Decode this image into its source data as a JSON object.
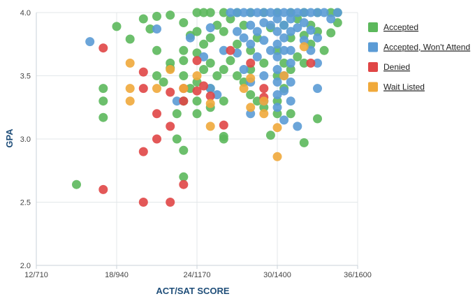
{
  "chart_data": {
    "type": "scatter",
    "xlabel": "ACT/SAT SCORE",
    "ylabel": "GPA",
    "xlim": [
      12,
      36
    ],
    "ylim": [
      2.0,
      4.0
    ],
    "x_ticks": [
      {
        "value": 12,
        "label": "12/710"
      },
      {
        "value": 18,
        "label": "18/940"
      },
      {
        "value": 24,
        "label": "24/1170"
      },
      {
        "value": 30,
        "label": "30/1400"
      },
      {
        "value": 36,
        "label": "36/1600"
      }
    ],
    "y_ticks": [
      {
        "value": 2.0,
        "label": "2.0"
      },
      {
        "value": 2.5,
        "label": "2.5"
      },
      {
        "value": 3.0,
        "label": "3.0"
      },
      {
        "value": 3.5,
        "label": "3.5"
      },
      {
        "value": 4.0,
        "label": "4.0"
      }
    ],
    "grid": true,
    "legend_position": "right",
    "series": [
      {
        "name": "Accepted",
        "color": "#5cb85c",
        "points": [
          [
            15.0,
            2.64
          ],
          [
            17.0,
            3.4
          ],
          [
            17.0,
            3.3
          ],
          [
            17.0,
            3.17
          ],
          [
            18.0,
            3.89
          ],
          [
            19.0,
            3.79
          ],
          [
            20.0,
            3.95
          ],
          [
            20.5,
            3.87
          ],
          [
            21.0,
            3.97
          ],
          [
            21.0,
            3.7
          ],
          [
            21.0,
            3.5
          ],
          [
            21.5,
            3.45
          ],
          [
            22.0,
            3.98
          ],
          [
            22.0,
            3.56
          ],
          [
            22.0,
            3.6
          ],
          [
            22.5,
            3.2
          ],
          [
            22.5,
            3.0
          ],
          [
            23.0,
            3.92
          ],
          [
            23.0,
            3.7
          ],
          [
            23.0,
            3.62
          ],
          [
            23.0,
            3.5
          ],
          [
            23.0,
            3.3
          ],
          [
            23.0,
            2.91
          ],
          [
            23.0,
            2.7
          ],
          [
            23.5,
            3.82
          ],
          [
            23.5,
            3.4
          ],
          [
            24.0,
            4.0
          ],
          [
            24.0,
            3.85
          ],
          [
            24.0,
            3.68
          ],
          [
            24.0,
            3.45
          ],
          [
            24.0,
            3.3
          ],
          [
            24.0,
            3.2
          ],
          [
            24.5,
            4.0
          ],
          [
            24.5,
            3.75
          ],
          [
            24.5,
            3.55
          ],
          [
            25.0,
            4.0
          ],
          [
            25.0,
            3.8
          ],
          [
            25.0,
            3.6
          ],
          [
            25.0,
            3.4
          ],
          [
            25.0,
            3.25
          ],
          [
            25.5,
            3.9
          ],
          [
            25.5,
            3.5
          ],
          [
            26.0,
            4.0
          ],
          [
            26.0,
            3.85
          ],
          [
            26.0,
            3.55
          ],
          [
            26.0,
            3.3
          ],
          [
            26.0,
            3.0
          ],
          [
            26.0,
            3.02
          ],
          [
            26.5,
            3.95
          ],
          [
            26.5,
            3.62
          ],
          [
            27.0,
            4.0
          ],
          [
            27.0,
            3.75
          ],
          [
            27.0,
            3.5
          ],
          [
            27.5,
            3.9
          ],
          [
            27.5,
            3.45
          ],
          [
            28.0,
            4.0
          ],
          [
            28.0,
            3.7
          ],
          [
            28.0,
            3.55
          ],
          [
            28.0,
            3.35
          ],
          [
            28.5,
            3.8
          ],
          [
            28.5,
            3.3
          ],
          [
            29.0,
            4.0
          ],
          [
            29.0,
            3.6
          ],
          [
            29.0,
            3.25
          ],
          [
            29.5,
            3.88
          ],
          [
            29.5,
            3.03
          ],
          [
            30.0,
            4.0
          ],
          [
            30.0,
            3.7
          ],
          [
            30.0,
            3.5
          ],
          [
            30.0,
            3.3
          ],
          [
            30.0,
            3.2
          ],
          [
            30.5,
            3.9
          ],
          [
            30.5,
            3.6
          ],
          [
            30.5,
            3.4
          ],
          [
            31.0,
            4.0
          ],
          [
            31.0,
            3.8
          ],
          [
            31.0,
            3.55
          ],
          [
            31.0,
            3.2
          ],
          [
            31.5,
            3.95
          ],
          [
            31.5,
            3.65
          ],
          [
            32.0,
            4.0
          ],
          [
            32.0,
            3.82
          ],
          [
            32.0,
            3.6
          ],
          [
            32.0,
            2.97
          ],
          [
            32.5,
            3.9
          ],
          [
            32.5,
            3.75
          ],
          [
            33.0,
            4.0
          ],
          [
            33.0,
            3.85
          ],
          [
            33.0,
            3.16
          ],
          [
            33.5,
            3.7
          ],
          [
            34.0,
            4.0
          ],
          [
            34.0,
            3.84
          ],
          [
            34.5,
            4.0
          ],
          [
            34.5,
            3.92
          ]
        ]
      },
      {
        "name": "Accepted, Won't Attend",
        "color": "#5b9bd5",
        "points": [
          [
            16.0,
            3.77
          ],
          [
            21.0,
            3.87
          ],
          [
            22.5,
            3.3
          ],
          [
            23.5,
            3.8
          ],
          [
            24.5,
            3.65
          ],
          [
            25.0,
            3.88
          ],
          [
            25.0,
            3.4
          ],
          [
            25.5,
            3.35
          ],
          [
            26.0,
            3.7
          ],
          [
            26.5,
            4.0
          ],
          [
            27.0,
            4.0
          ],
          [
            27.0,
            3.85
          ],
          [
            27.0,
            3.68
          ],
          [
            27.5,
            4.0
          ],
          [
            27.5,
            3.8
          ],
          [
            27.5,
            3.55
          ],
          [
            28.0,
            4.0
          ],
          [
            28.0,
            3.9
          ],
          [
            28.0,
            3.75
          ],
          [
            28.0,
            3.45
          ],
          [
            28.0,
            3.2
          ],
          [
            28.5,
            4.0
          ],
          [
            28.5,
            3.85
          ],
          [
            28.5,
            3.65
          ],
          [
            29.0,
            4.0
          ],
          [
            29.0,
            3.92
          ],
          [
            29.0,
            3.78
          ],
          [
            29.0,
            3.5
          ],
          [
            29.0,
            3.3
          ],
          [
            29.5,
            4.0
          ],
          [
            29.5,
            3.9
          ],
          [
            29.5,
            3.7
          ],
          [
            30.0,
            4.0
          ],
          [
            30.0,
            3.95
          ],
          [
            30.0,
            3.85
          ],
          [
            30.0,
            3.75
          ],
          [
            30.0,
            3.65
          ],
          [
            30.0,
            3.55
          ],
          [
            30.0,
            3.45
          ],
          [
            30.0,
            3.35
          ],
          [
            30.0,
            3.25
          ],
          [
            30.5,
            4.0
          ],
          [
            30.5,
            3.9
          ],
          [
            30.5,
            3.8
          ],
          [
            30.5,
            3.7
          ],
          [
            30.5,
            3.5
          ],
          [
            30.5,
            3.38
          ],
          [
            30.5,
            3.15
          ],
          [
            31.0,
            4.0
          ],
          [
            31.0,
            3.95
          ],
          [
            31.0,
            3.85
          ],
          [
            31.0,
            3.7
          ],
          [
            31.0,
            3.6
          ],
          [
            31.0,
            3.45
          ],
          [
            31.0,
            3.3
          ],
          [
            31.5,
            4.0
          ],
          [
            31.5,
            3.88
          ],
          [
            31.5,
            3.1
          ],
          [
            32.0,
            4.0
          ],
          [
            32.0,
            3.92
          ],
          [
            32.0,
            3.78
          ],
          [
            32.5,
            4.0
          ],
          [
            32.5,
            3.86
          ],
          [
            32.5,
            3.7
          ],
          [
            33.0,
            4.0
          ],
          [
            33.0,
            3.8
          ],
          [
            33.0,
            3.6
          ],
          [
            33.0,
            3.4
          ],
          [
            33.5,
            4.0
          ],
          [
            34.0,
            3.95
          ],
          [
            34.5,
            4.0
          ]
        ]
      },
      {
        "name": "Denied",
        "color": "#e04646",
        "points": [
          [
            17.0,
            3.72
          ],
          [
            17.0,
            2.6
          ],
          [
            20.0,
            3.53
          ],
          [
            20.0,
            3.4
          ],
          [
            20.0,
            2.9
          ],
          [
            20.0,
            2.5
          ],
          [
            21.0,
            3.2
          ],
          [
            21.0,
            3.0
          ],
          [
            22.0,
            3.37
          ],
          [
            22.0,
            3.1
          ],
          [
            22.0,
            2.5
          ],
          [
            23.0,
            3.4
          ],
          [
            23.0,
            3.3
          ],
          [
            23.0,
            2.64
          ],
          [
            24.0,
            3.62
          ],
          [
            24.0,
            3.38
          ],
          [
            24.5,
            3.42
          ],
          [
            25.0,
            3.34
          ],
          [
            26.0,
            3.11
          ],
          [
            26.5,
            3.7
          ],
          [
            28.0,
            3.6
          ],
          [
            29.0,
            3.4
          ],
          [
            29.0,
            3.33
          ],
          [
            32.5,
            3.6
          ]
        ]
      },
      {
        "name": "Wait Listed",
        "color": "#f0a93b",
        "points": [
          [
            19.0,
            3.6
          ],
          [
            19.0,
            3.4
          ],
          [
            19.0,
            3.3
          ],
          [
            21.0,
            3.4
          ],
          [
            22.0,
            3.55
          ],
          [
            23.0,
            3.4
          ],
          [
            24.0,
            3.5
          ],
          [
            25.0,
            3.28
          ],
          [
            25.0,
            3.1
          ],
          [
            27.5,
            3.4
          ],
          [
            28.0,
            3.48
          ],
          [
            28.0,
            3.25
          ],
          [
            29.0,
            3.3
          ],
          [
            29.0,
            3.2
          ],
          [
            30.0,
            3.09
          ],
          [
            30.0,
            2.86
          ],
          [
            30.5,
            3.5
          ],
          [
            32.0,
            3.73
          ]
        ]
      }
    ]
  }
}
